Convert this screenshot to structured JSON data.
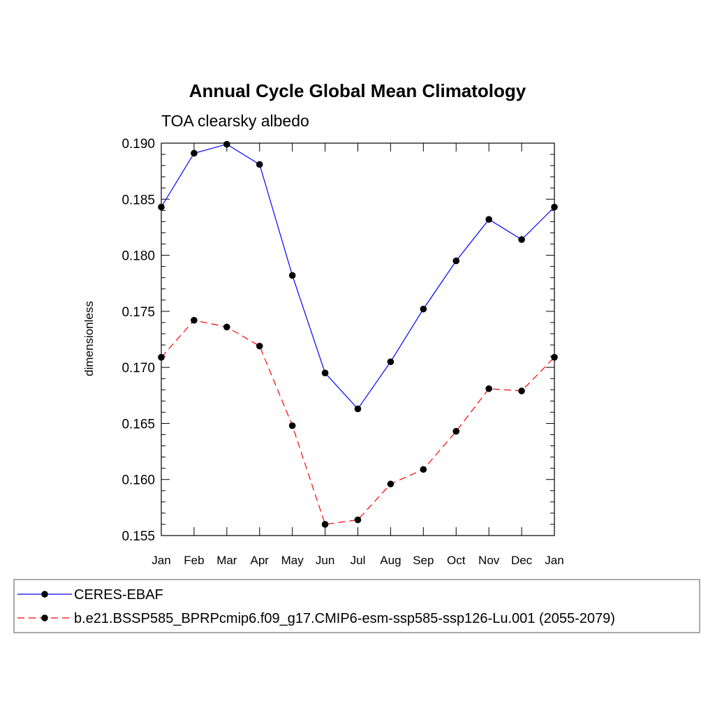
{
  "chart_data": {
    "type": "line",
    "title": "Annual Cycle Global Mean Climatology",
    "subtitle": "TOA clearsky albedo",
    "xlabel": "",
    "ylabel": "dimensionless",
    "categories": [
      "Jan",
      "Feb",
      "Mar",
      "Apr",
      "May",
      "Jun",
      "Jul",
      "Aug",
      "Sep",
      "Oct",
      "Nov",
      "Dec",
      "Jan"
    ],
    "ylim": [
      0.155,
      0.19
    ],
    "yticks": [
      "0.155",
      "0.160",
      "0.165",
      "0.170",
      "0.175",
      "0.180",
      "0.185",
      "0.190"
    ],
    "legend_position": "bottom",
    "grid": false,
    "series": [
      {
        "name": "CERES-EBAF",
        "color": "#0000ff",
        "line_style": "solid",
        "marker": "filled-circle",
        "values": [
          0.1843,
          0.1891,
          0.1899,
          0.1881,
          0.1782,
          0.1695,
          0.1663,
          0.1705,
          0.1752,
          0.1795,
          0.1832,
          0.1814,
          0.1843
        ]
      },
      {
        "name": "b.e21.BSSP585_BPRPcmip6.f09_g17.CMIP6-esm-ssp585-ssp126-Lu.001 (2055-2079)",
        "color": "#ff0000",
        "line_style": "dashed",
        "marker": "filled-circle",
        "values": [
          0.1709,
          0.1742,
          0.1736,
          0.1719,
          0.1648,
          0.156,
          0.1564,
          0.1596,
          0.1609,
          0.1643,
          0.1681,
          0.1679,
          0.1709
        ]
      }
    ]
  }
}
